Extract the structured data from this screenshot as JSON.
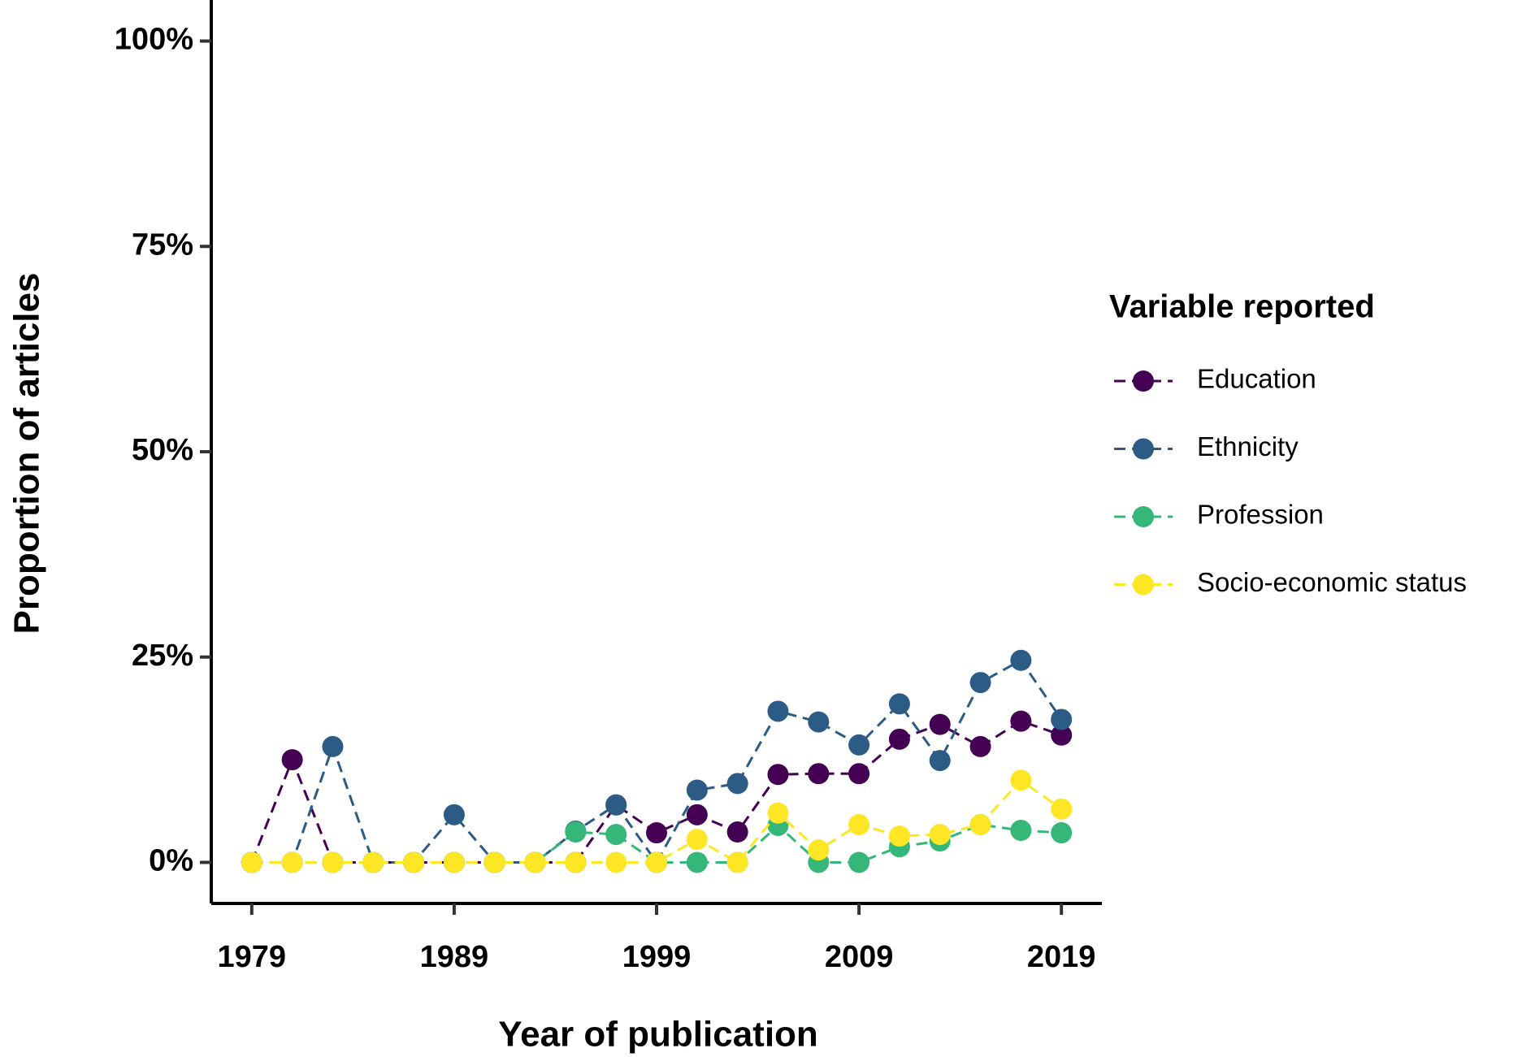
{
  "chart_data": {
    "type": "line",
    "x_label": "Year of publication",
    "y_label": "Proportion of articles",
    "legend_title": "Variable reported",
    "x": [
      1979,
      1981,
      1983,
      1985,
      1987,
      1989,
      1991,
      1993,
      1995,
      1997,
      1999,
      2001,
      2003,
      2005,
      2007,
      2009,
      2011,
      2013,
      2015,
      2017,
      2019
    ],
    "series": [
      {
        "name": "Education",
        "color": "#440154",
        "values": [
          0,
          12.5,
          0,
          0,
          0,
          0,
          0,
          0,
          0,
          7,
          3.6,
          5.8,
          3.7,
          10.7,
          10.8,
          10.8,
          15,
          16.8,
          14.1,
          17.2,
          15.5
        ]
      },
      {
        "name": "Ethnicity",
        "color": "#2c5b86",
        "values": [
          0,
          0,
          14.1,
          0,
          0,
          5.8,
          0,
          0,
          3.8,
          7,
          0,
          8.8,
          9.6,
          18.4,
          17.1,
          14.3,
          19.3,
          12.4,
          21.9,
          24.6,
          17.4
        ]
      },
      {
        "name": "Profession",
        "color": "#35b779",
        "values": [
          0,
          0,
          0,
          0,
          0,
          0,
          0,
          0,
          3.7,
          3.4,
          0,
          0,
          0,
          4.5,
          0,
          0,
          1.9,
          2.6,
          4.6,
          3.9,
          3.6
        ]
      },
      {
        "name": "Socio-economic status",
        "color": "#fde725",
        "values": [
          0,
          0,
          0,
          0,
          0,
          0,
          0,
          0,
          0,
          0,
          0,
          2.8,
          0,
          6,
          1.5,
          4.6,
          3.2,
          3.4,
          4.6,
          10,
          6.5
        ]
      }
    ],
    "xlim": [
      1977,
      2021
    ],
    "xticks": [
      1979,
      1989,
      1999,
      2009,
      2019
    ],
    "ylim": [
      -5,
      105
    ],
    "yticks": [
      {
        "value": 0,
        "label": "0%"
      },
      {
        "value": 25,
        "label": "25%"
      },
      {
        "value": 50,
        "label": "50%"
      },
      {
        "value": 75,
        "label": "75%"
      },
      {
        "value": 100,
        "label": "100%"
      }
    ],
    "legend": "right",
    "grid": false
  }
}
